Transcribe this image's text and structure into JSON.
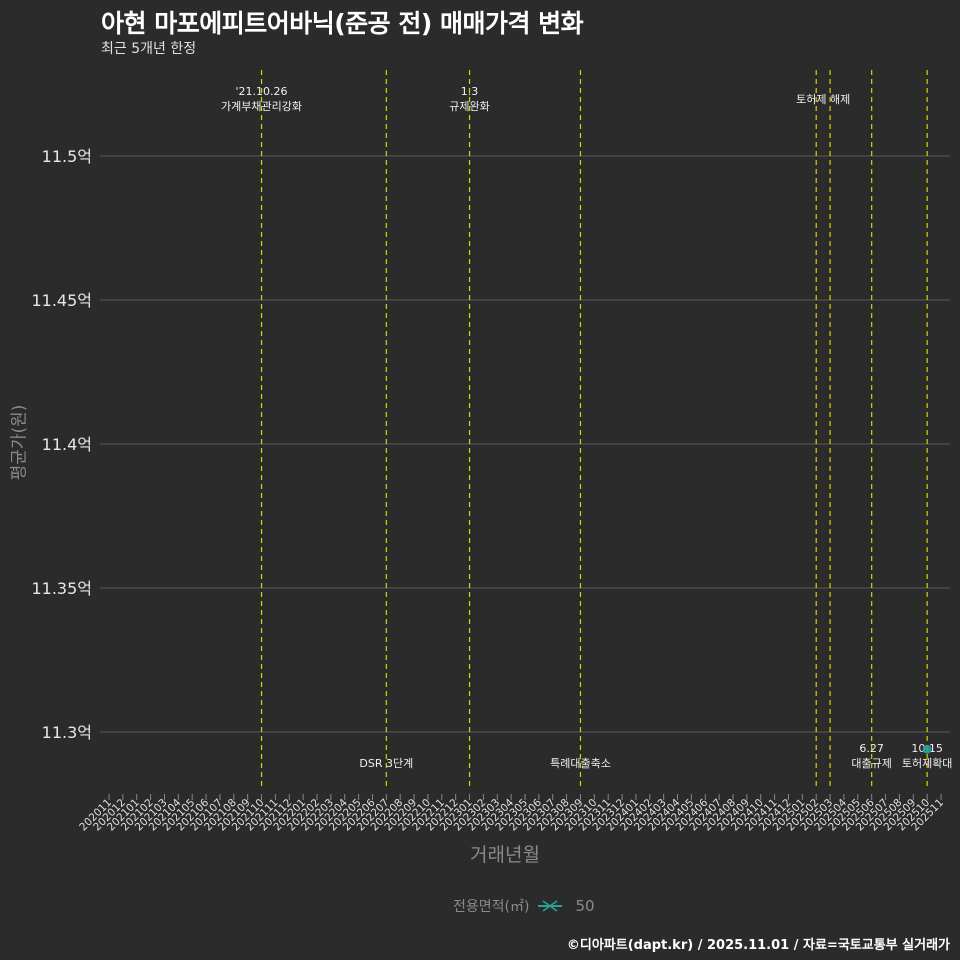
{
  "header": {
    "title": "아현 마포에피트어바닉(준공 전) 매매가격 변화",
    "subtitle": "최근 5개년 한정"
  },
  "axes": {
    "ylabel": "평균가(원)",
    "xlabel": "거래년월"
  },
  "legend": {
    "title": "전용면적(㎡)",
    "entries": [
      {
        "label": "50",
        "color": "#2aa198"
      }
    ]
  },
  "footer": {
    "credit": "©디아파트(dapt.kr) / 2025.11.01 / 자료=국토교통부 실거래가"
  },
  "colors": {
    "background": "#2b2b2b",
    "grid": "#4a4a4a",
    "event_line": "#d4d400",
    "series": "#2aa198",
    "text": "#e8e8e8"
  },
  "chart_data": {
    "type": "line",
    "title": "아현 마포에피트어바닉(준공 전) 매매가격 변화",
    "subtitle": "최근 5개년 한정",
    "xlabel": "거래년월",
    "ylabel": "평균가(원)",
    "ylim": [
      11.278,
      11.53
    ],
    "y_unit": "억",
    "yticks": [
      11.3,
      11.35,
      11.4,
      11.45,
      11.5
    ],
    "ytick_labels": [
      "11.3억",
      "11.35억",
      "11.4억",
      "11.45억",
      "11.5억"
    ],
    "x_ticks": [
      "202011",
      "202012",
      "202101",
      "202102",
      "202103",
      "202104",
      "202105",
      "202106",
      "202107",
      "202108",
      "202109",
      "202110",
      "202111",
      "202112",
      "202201",
      "202202",
      "202203",
      "202204",
      "202205",
      "202206",
      "202207",
      "202208",
      "202209",
      "202210",
      "202211",
      "202212",
      "202301",
      "202302",
      "202303",
      "202304",
      "202305",
      "202306",
      "202307",
      "202308",
      "202309",
      "202310",
      "202311",
      "202312",
      "202401",
      "202402",
      "202403",
      "202404",
      "202405",
      "202406",
      "202407",
      "202408",
      "202409",
      "202410",
      "202411",
      "202412",
      "202501",
      "202502",
      "202503",
      "202504",
      "202505",
      "202506",
      "202507",
      "202508",
      "202509",
      "202510",
      "202511"
    ],
    "grid": true,
    "legend_position": "bottom",
    "series": [
      {
        "name": "50",
        "points": [
          {
            "x": "202510",
            "y": 11.294
          }
        ]
      }
    ],
    "events": [
      {
        "x": "202110",
        "label_top": "'21.10.26",
        "label_bottom": "가계부채관리강화",
        "position": "top"
      },
      {
        "x": "202207",
        "label_top": "",
        "label_bottom": "DSR 3단계",
        "position": "bottom"
      },
      {
        "x": "202301",
        "label_top": "1.3",
        "label_bottom": "규제완화",
        "position": "top"
      },
      {
        "x": "202309",
        "label_top": "",
        "label_bottom": "특례대출축소",
        "position": "bottom"
      },
      {
        "x": "202502",
        "label_top": "",
        "label_bottom": "토허제 해제",
        "position": "top"
      },
      {
        "x": "202503",
        "label_top": "",
        "label_bottom": "",
        "position": "top"
      },
      {
        "x": "202506",
        "label_top": "6.27",
        "label_bottom": "대출규제",
        "position": "bottom"
      },
      {
        "x": "202510",
        "label_top": "10.15",
        "label_bottom": "토허제확대",
        "position": "bottom"
      }
    ]
  }
}
